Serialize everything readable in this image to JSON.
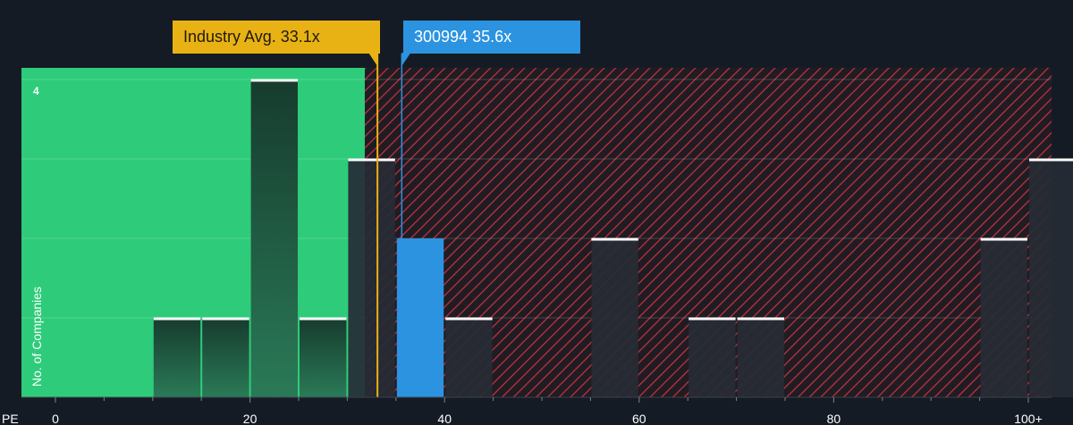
{
  "chart_data": {
    "type": "bar",
    "x_axis_title": "PE",
    "y_axis_title": "No. of Companies",
    "x_ticks": [
      {
        "value": 0,
        "label": "0"
      },
      {
        "value": 20,
        "label": "20"
      },
      {
        "value": 40,
        "label": "40"
      },
      {
        "value": 60,
        "label": "60"
      },
      {
        "value": 80,
        "label": "80"
      },
      {
        "value": 100,
        "label": "100+"
      }
    ],
    "xlim": [
      0,
      102.5
    ],
    "ylim": [
      0,
      4
    ],
    "y_tick_label": "4",
    "bins": [
      {
        "start": 10,
        "end": 15,
        "count": 1
      },
      {
        "start": 15,
        "end": 20,
        "count": 1
      },
      {
        "start": 20,
        "end": 25,
        "count": 4
      },
      {
        "start": 25,
        "end": 30,
        "count": 1
      },
      {
        "start": 30,
        "end": 35,
        "count": 3
      },
      {
        "start": 35,
        "end": 40,
        "count": 2,
        "highlight": true
      },
      {
        "start": 40,
        "end": 45,
        "count": 1
      },
      {
        "start": 55,
        "end": 60,
        "count": 2
      },
      {
        "start": 65,
        "end": 70,
        "count": 1
      },
      {
        "start": 70,
        "end": 75,
        "count": 1
      },
      {
        "start": 95,
        "end": 100,
        "count": 2
      },
      {
        "start": 100,
        "end": 105,
        "count": 3
      }
    ],
    "fair_value_upper": 31.8,
    "industry_avg": {
      "value": 33.1,
      "label": "Industry Avg. 33.1x"
    },
    "company": {
      "value": 35.6,
      "label": "300994 35.6x"
    },
    "colors": {
      "background": "#151b24",
      "undervalued": "#2ecc7a",
      "overvalued_hatch": "#c0313b",
      "industry": "#e8b215",
      "company": "#2b93e0",
      "bar_dark": "#1e4a38",
      "bar_over": "#262b35"
    }
  }
}
